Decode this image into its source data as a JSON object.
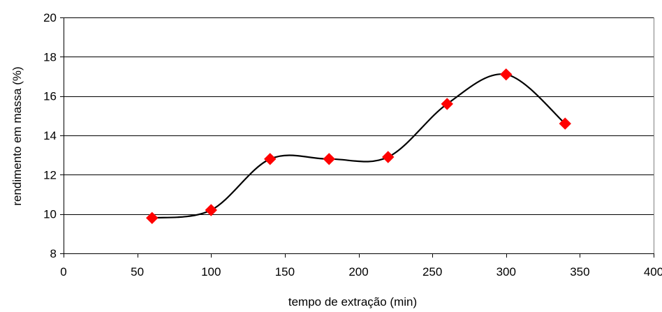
{
  "chart_data": {
    "type": "scatter",
    "smoothed_line": true,
    "xlabel": "tempo de extração (min)",
    "ylabel": "rendimento em massa (%)",
    "xlim": [
      0,
      400
    ],
    "ylim": [
      8,
      20
    ],
    "x_ticks": [
      0,
      50,
      100,
      150,
      200,
      250,
      300,
      350,
      400
    ],
    "y_ticks": [
      8,
      10,
      12,
      14,
      16,
      18,
      20
    ],
    "x_tick_labels": [
      "0",
      "50",
      "100",
      "150",
      "200",
      "250",
      "300",
      "350",
      "400"
    ],
    "y_tick_labels": [
      "8",
      "10",
      "12",
      "14",
      "16",
      "18",
      "20"
    ],
    "horizontal_grid": true,
    "legend": "none",
    "series": [
      {
        "x": [
          60,
          100,
          140,
          180,
          220,
          260,
          300,
          340
        ],
        "y": [
          9.8,
          10.2,
          12.8,
          12.8,
          12.9,
          15.6,
          17.1,
          14.6
        ],
        "marker": "diamond",
        "marker_color": "#ff0000",
        "line_color": "#000000"
      }
    ]
  }
}
